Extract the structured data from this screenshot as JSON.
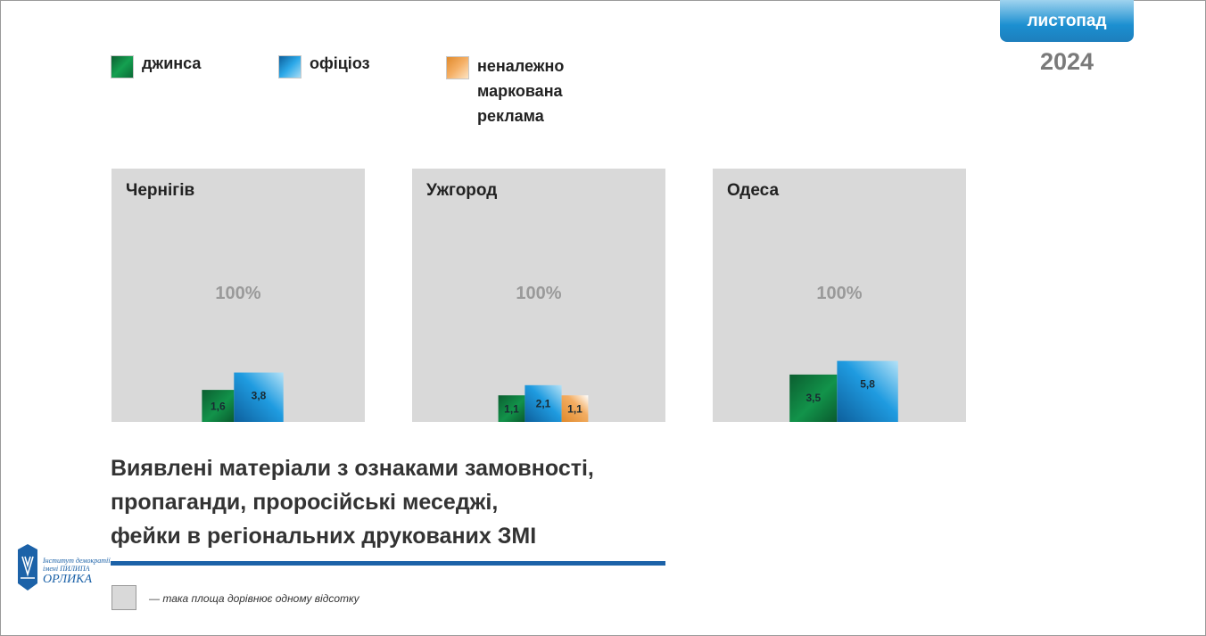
{
  "header": {
    "month": "листопад",
    "year": "2024"
  },
  "legend": [
    {
      "label": "джинса",
      "color": "#0e8a48"
    },
    {
      "label": "офіціоз",
      "color": "#1a8fd6"
    },
    {
      "label": "неналежно маркована реклама",
      "color": "#f0a44c"
    }
  ],
  "colors": {
    "panel_bg": "#d9d9d9",
    "accent": "#1c62a8"
  },
  "chart_data": [
    {
      "type": "bar",
      "title": "Чернігів",
      "total_label": "100%",
      "categories": [
        "джинса",
        "офіціоз"
      ],
      "values": [
        1.6,
        3.8
      ],
      "value_labels": [
        "1,6",
        "3,8"
      ],
      "reference_area_percent": 100
    },
    {
      "type": "bar",
      "title": "Ужгород",
      "total_label": "100%",
      "categories": [
        "джинса",
        "офіціоз",
        "неналежно маркована реклама"
      ],
      "values": [
        1.1,
        2.1,
        1.1
      ],
      "value_labels": [
        "1,1",
        "2,1",
        "1,1"
      ],
      "reference_area_percent": 100
    },
    {
      "type": "bar",
      "title": "Одеса",
      "total_label": "100%",
      "categories": [
        "джинса",
        "офіціоз"
      ],
      "values": [
        3.5,
        5.8
      ],
      "value_labels": [
        "3,5",
        "5,8"
      ],
      "reference_area_percent": 100
    }
  ],
  "headline": {
    "line1": "Виявлені матеріали з ознаками замовності,",
    "line2": "пропаганди, проросійські меседжі,",
    "line3": "фейки в регіональних друкованих ЗМІ"
  },
  "logo": {
    "line1": "Інститут демократії",
    "line2": "імені ПИЛИПА",
    "line3": "ОРЛИКА"
  },
  "note": {
    "text": "— така площа дорівнює одному відсотку"
  }
}
